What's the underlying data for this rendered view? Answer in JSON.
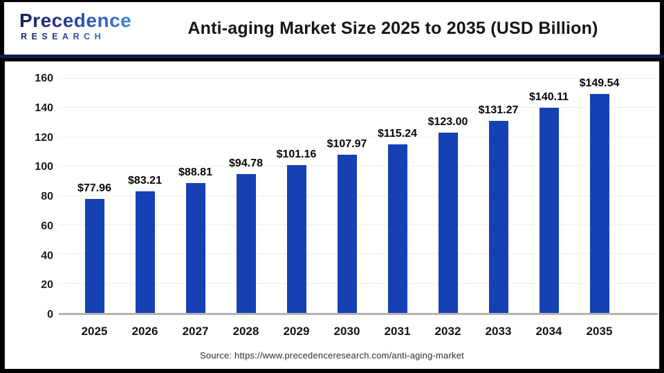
{
  "header": {
    "logo_line1": "Precedence",
    "logo_line2": "RESEARCH",
    "title": "Anti-aging Market Size 2025 to 2035 (USD Billion)"
  },
  "chart_data": {
    "type": "bar",
    "title": "Anti-aging Market Size 2025 to 2035 (USD Billion)",
    "categories": [
      "2025",
      "2026",
      "2027",
      "2028",
      "2029",
      "2030",
      "2031",
      "2032",
      "2033",
      "2034",
      "2035"
    ],
    "values": [
      77.96,
      83.21,
      88.81,
      94.78,
      101.16,
      107.97,
      115.24,
      123.0,
      131.27,
      140.11,
      149.54
    ],
    "value_prefix": "$",
    "xlabel": "",
    "ylabel": "",
    "ylim": [
      0,
      160
    ],
    "yticks": [
      0,
      20,
      40,
      60,
      80,
      100,
      120,
      140,
      160
    ],
    "grid": true,
    "legend": "none",
    "bar_color": "#1641b4"
  },
  "footer": {
    "source": "Source: https://www.precedenceresearch.com/anti-aging-market"
  },
  "colors": {
    "divider_navy": "#0d1c52",
    "panel_border": "#141414",
    "baseline_gray": "#b3b3b3",
    "gridline_gray": "#efefef"
  }
}
